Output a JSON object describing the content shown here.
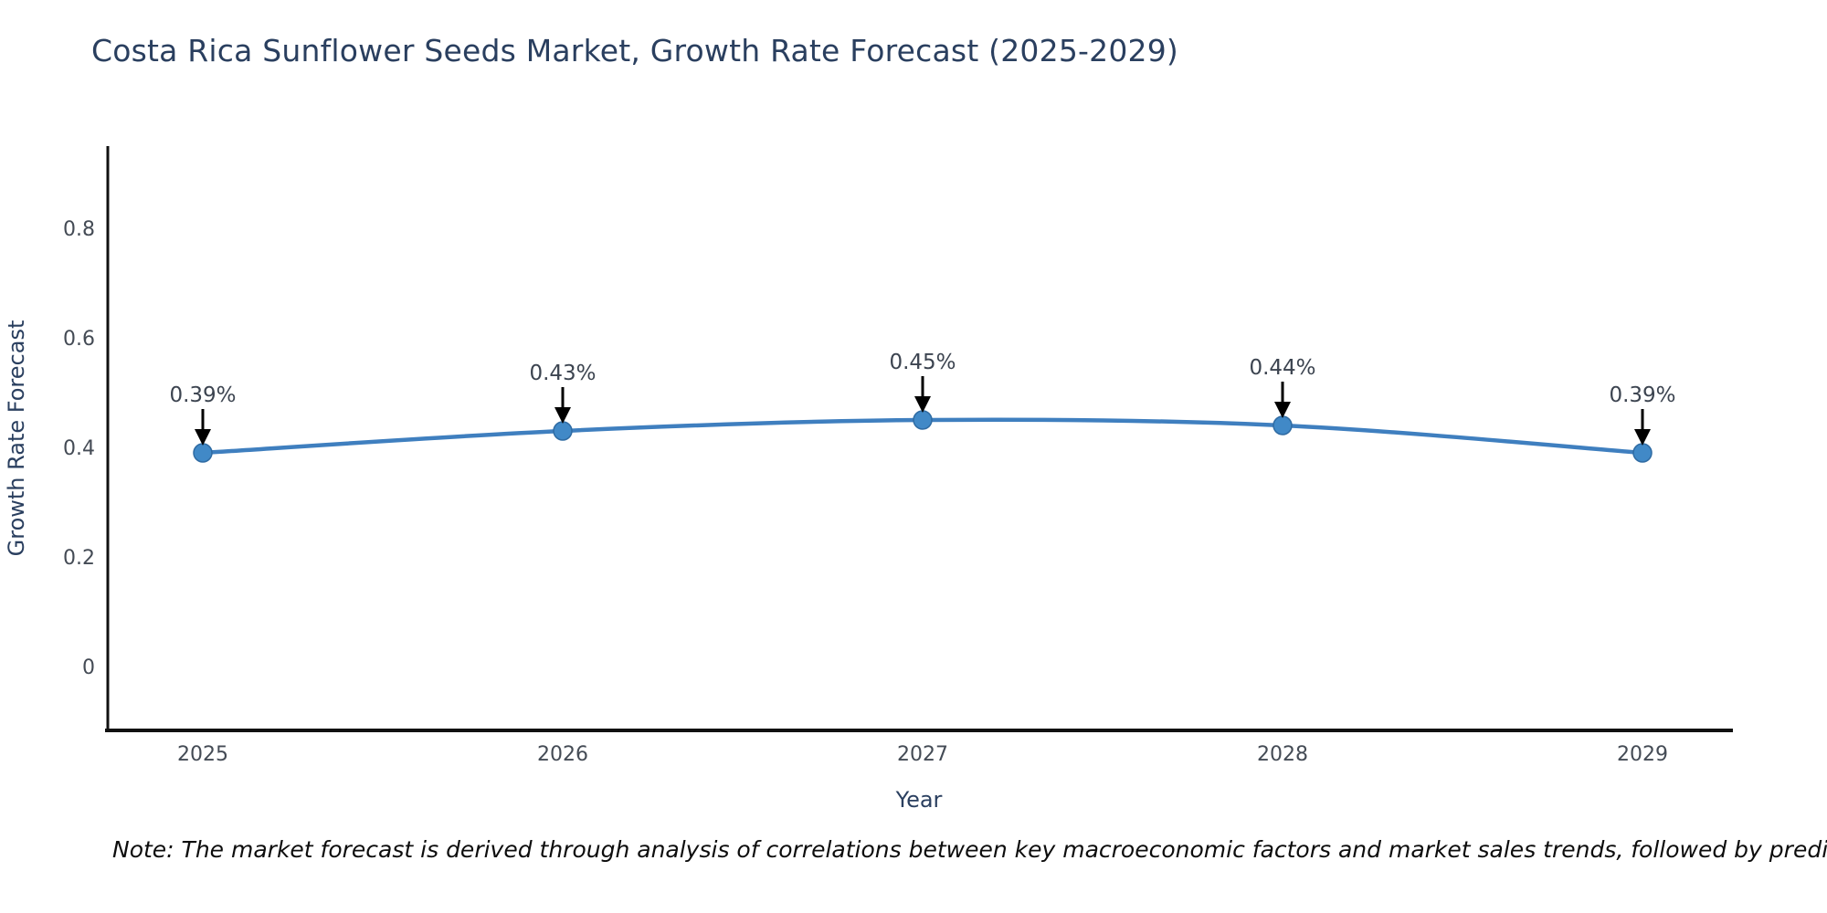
{
  "title": "Costa Rica Sunflower Seeds Market, Growth Rate Forecast (2025-2029)",
  "note": "Note: The market forecast is derived through analysis of correlations between key macroeconomic factors and market sales trends, followed by predictive modeling to project future sales",
  "chart_data": {
    "type": "line",
    "title": "Costa Rica Sunflower Seeds Market, Growth Rate Forecast (2025-2029)",
    "xlabel": "Year",
    "ylabel": "Growth Rate Forecast",
    "x": [
      2025,
      2026,
      2027,
      2028,
      2029
    ],
    "y": [
      0.39,
      0.43,
      0.45,
      0.44,
      0.39
    ],
    "point_labels": [
      "0.39%",
      "0.43%",
      "0.45%",
      "0.44%",
      "0.39%"
    ],
    "xtick_labels": [
      "2025",
      "2026",
      "2027",
      "2028",
      "2029"
    ],
    "ytick_values": [
      0,
      0.2,
      0.4,
      0.6,
      0.8
    ],
    "ytick_labels": [
      "0",
      "0.2",
      "0.4",
      "0.6",
      "0.8"
    ],
    "xlim": [
      2024.73,
      2029.25
    ],
    "ylim": [
      -0.117,
      0.945
    ],
    "grid": false,
    "legend": "none",
    "line_shape": "spline",
    "colors": {
      "line": "#3f7fbf",
      "marker_fill": "#4189c7",
      "marker_stroke": "#2f6ba3",
      "axis": "#111111",
      "tick_text": "#444b55",
      "axis_title_text": "#2a3f5f",
      "annotation_text": "#3c4450",
      "annotation_arrow": "#000000"
    }
  }
}
